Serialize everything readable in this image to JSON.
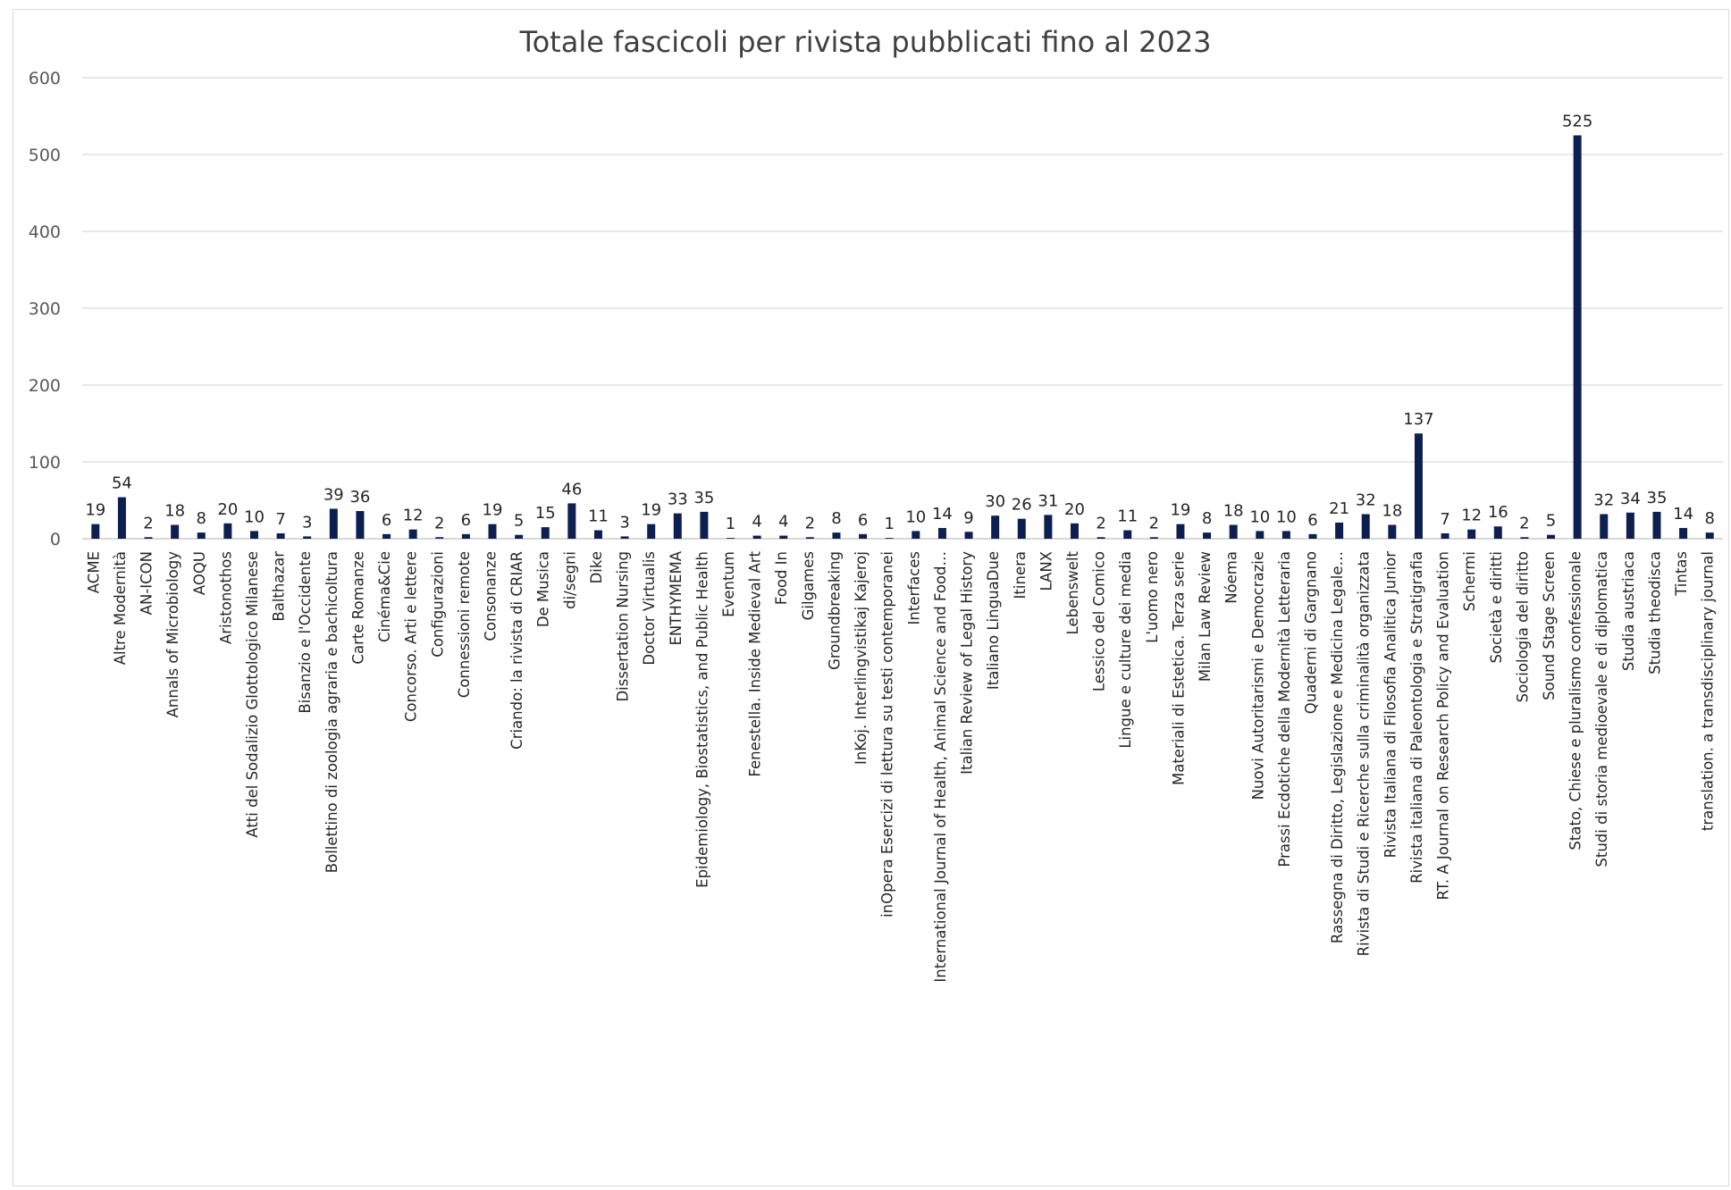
{
  "chart_data": {
    "type": "bar",
    "title": "Totale fascicoli per rivista pubblicati fino al 2023",
    "xlabel": "",
    "ylabel": "",
    "ylim": [
      0,
      600
    ],
    "yticks": [
      "0",
      "100",
      "200",
      "300",
      "400",
      "500",
      "600"
    ],
    "grid": true,
    "bar_color": "#0d1f4f",
    "categories": [
      "ACME",
      "Altre Modernità",
      "AN-ICON",
      "Annals of Microbiology",
      "AOQU",
      "Aristonothos",
      "Atti del Sodalizio Glottologico Milanese",
      "Balthazar",
      "Bisanzio e l'Occidente",
      "Bollettino di zoologia agraria e bachicoltura",
      "Carte Romanze",
      "Cinéma&Cie",
      "Concorso. Arti e lettere",
      "Configurazioni",
      "Connessioni remote",
      "Consonanze",
      "Criando: la rivista di CRIAR",
      "De Musica",
      "di/segni",
      "Dike",
      "Dissertation Nursing",
      "Doctor Virtualis",
      "ENTHYMEMA",
      "Epidemiology, Biostatistics, and Public Health",
      "Eventum",
      "Fenestella. Inside Medieval Art",
      "Food In",
      "Gilgames",
      "Groundbreaking",
      "InKoj. Interlingvistikaj Kajeroj",
      "inOpera Esercizi di lettura su testi contemporanei",
      "Interfaces",
      "International Journal of Health,  Animal Science and Food…",
      "Italian Review of Legal History",
      "Italiano LinguaDue",
      "Itinera",
      "LANX",
      "Lebenswelt",
      "Lessico del Comico",
      "Lingue e culture dei media",
      "L'uomo nero",
      "Materiali di Estetica. Terza serie",
      "Milan Law Review",
      "Nóema",
      "Nuovi Autoritarismi e Democrazie",
      "Prassi Ecdotiche della Modernità  Letteraria",
      "Quaderni di Gargnano",
      "Rassegna di Diritto,  Legislazione e Medicina Legale…",
      "Rivista di Studi e Ricerche sulla criminalità  organizzata",
      "Rivista Italiana di Filosofia Analitica Junior",
      "Rivista italiana di Paleontologia e Stratigrafia",
      "RT. A Journal on Research Policy and Evaluation",
      "Schermi",
      "Società  e diritti",
      "Sociologia del diritto",
      "Sound Stage Screen",
      "Stato,  Chiese e pluralismo confessionale",
      "Studi di storia medioevale e di diplomatica",
      "Studia austriaca",
      "Studia theodisca",
      "Tintas",
      "translation. a transdisciplinary journal"
    ],
    "values": [
      19,
      54,
      2,
      18,
      8,
      20,
      10,
      7,
      3,
      39,
      36,
      6,
      12,
      2,
      6,
      19,
      5,
      15,
      46,
      11,
      3,
      19,
      33,
      35,
      1,
      4,
      4,
      2,
      8,
      6,
      1,
      10,
      14,
      9,
      30,
      26,
      31,
      20,
      2,
      11,
      2,
      19,
      8,
      18,
      10,
      10,
      6,
      21,
      32,
      18,
      137,
      7,
      12,
      16,
      2,
      5,
      525,
      32,
      34,
      35,
      14,
      8
    ]
  }
}
